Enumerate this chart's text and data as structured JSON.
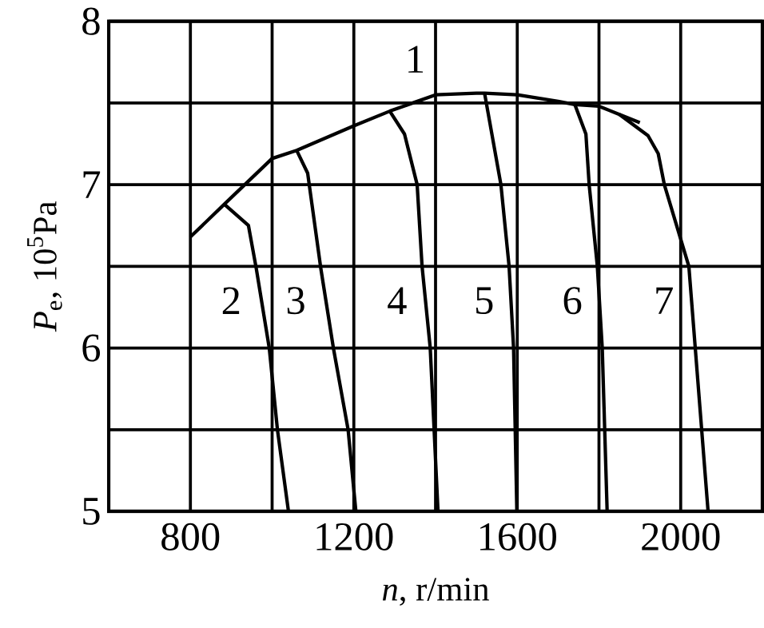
{
  "chart_data": {
    "type": "line",
    "xlabel": "*n*, r/min",
    "ylabel": "*P*$_{e}$, 10$^{5}$Pa",
    "xlim": [
      600,
      2200
    ],
    "ylim": [
      5,
      8
    ],
    "xticks": [
      800,
      {
        "value": 1000,
        "label": null
      },
      1200,
      {
        "value": 1400,
        "label": null
      },
      1600,
      {
        "value": 1800,
        "label": null
      },
      2000
    ],
    "yticks": [
      5,
      {
        "value": 5.5,
        "label": null
      },
      6,
      {
        "value": 6.5,
        "label": null
      },
      7,
      {
        "value": 7.5,
        "label": null
      },
      8
    ],
    "grid": true,
    "legend": false,
    "marker": "none",
    "line_style": "solid",
    "series": [
      {
        "name": "1",
        "color": "#000000",
        "x": [
          800,
          883,
          1000,
          1060,
          1200,
          1288,
          1400,
          1500,
          1520,
          1600,
          1700,
          1741,
          1800,
          1850,
          1900
        ],
        "values": [
          6.68,
          6.88,
          7.16,
          7.21,
          7.36,
          7.45,
          7.55,
          7.56,
          7.56,
          7.55,
          7.51,
          7.49,
          7.48,
          7.43,
          7.38
        ]
      },
      {
        "name": "2",
        "color": "#000000",
        "x": [
          883,
          942,
          961,
          993,
          1013,
          1040
        ],
        "values": [
          6.88,
          6.75,
          6.49,
          6.0,
          5.5,
          5.0
        ]
      },
      {
        "name": "3",
        "color": "#000000",
        "x": [
          1060,
          1087,
          1119,
          1150,
          1186,
          1205
        ],
        "values": [
          7.21,
          7.07,
          6.49,
          6.0,
          5.5,
          5.0
        ]
      },
      {
        "name": "4",
        "color": "#000000",
        "x": [
          1288,
          1324,
          1355,
          1367,
          1387,
          1406
        ],
        "values": [
          7.45,
          7.31,
          7.0,
          6.5,
          6.0,
          5.0
        ]
      },
      {
        "name": "5",
        "color": "#000000",
        "x": [
          1520,
          1560,
          1580,
          1591,
          1599
        ],
        "values": [
          7.56,
          7.0,
          6.5,
          6.0,
          5.0
        ]
      },
      {
        "name": "6",
        "color": "#000000",
        "x": [
          1741,
          1768,
          1776,
          1796,
          1808,
          1820
        ],
        "values": [
          7.49,
          7.31,
          7.0,
          6.5,
          6.0,
          5.0
        ]
      },
      {
        "name": "7",
        "color": "#000000",
        "x": [
          1850,
          1920,
          1945,
          1960,
          2020,
          2067
        ],
        "values": [
          7.43,
          7.3,
          7.19,
          7.0,
          6.5,
          5.0
        ]
      }
    ]
  }
}
